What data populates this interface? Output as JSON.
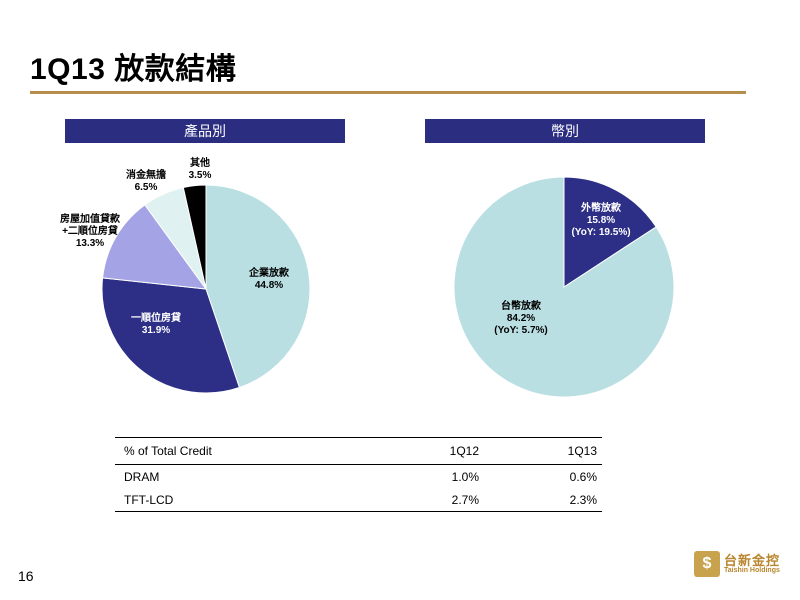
{
  "page_title": "1Q13 放款結構",
  "page_number": "16",
  "logo": {
    "cn": "台新金控",
    "en": "Taishin Holdings"
  },
  "chart_data": [
    {
      "type": "pie",
      "title": "產品別",
      "slices": [
        {
          "name": "企業放款",
          "value": 44.8,
          "label_value": "44.8%",
          "color": "#b9dfe3"
        },
        {
          "name": "一順位房貸",
          "value": 31.9,
          "label_value": "31.9%",
          "color": "#2d2f87"
        },
        {
          "name": "房屋加值貸款\n+二順位房貸",
          "name_lines": [
            "房屋加值貸款",
            "+二順位房貸"
          ],
          "value": 13.3,
          "label_value": "13.3%",
          "color": "#a3a3e6"
        },
        {
          "name": "消金無擔",
          "value": 6.5,
          "label_value": "6.5%",
          "color": "#e0f1f2"
        },
        {
          "name": "其他",
          "value": 3.5,
          "label_value": "3.5%",
          "color": "#000000"
        }
      ]
    },
    {
      "type": "pie",
      "title": "幣別",
      "slices": [
        {
          "name": "外幣放款",
          "value": 15.8,
          "label_value": "15.8%",
          "note": "(YoY: 19.5%)",
          "color": "#2d2f87"
        },
        {
          "name": "台幣放款",
          "value": 84.2,
          "label_value": "84.2%",
          "note": "(YoY: 5.7%)",
          "color": "#b9dfe3"
        }
      ]
    },
    {
      "type": "table",
      "columns": [
        "% of Total Credit",
        "1Q12",
        "1Q13"
      ],
      "rows": [
        [
          "DRAM",
          "1.0%",
          "0.6%"
        ],
        [
          "TFT-LCD",
          "2.7%",
          "2.3%"
        ]
      ]
    }
  ]
}
